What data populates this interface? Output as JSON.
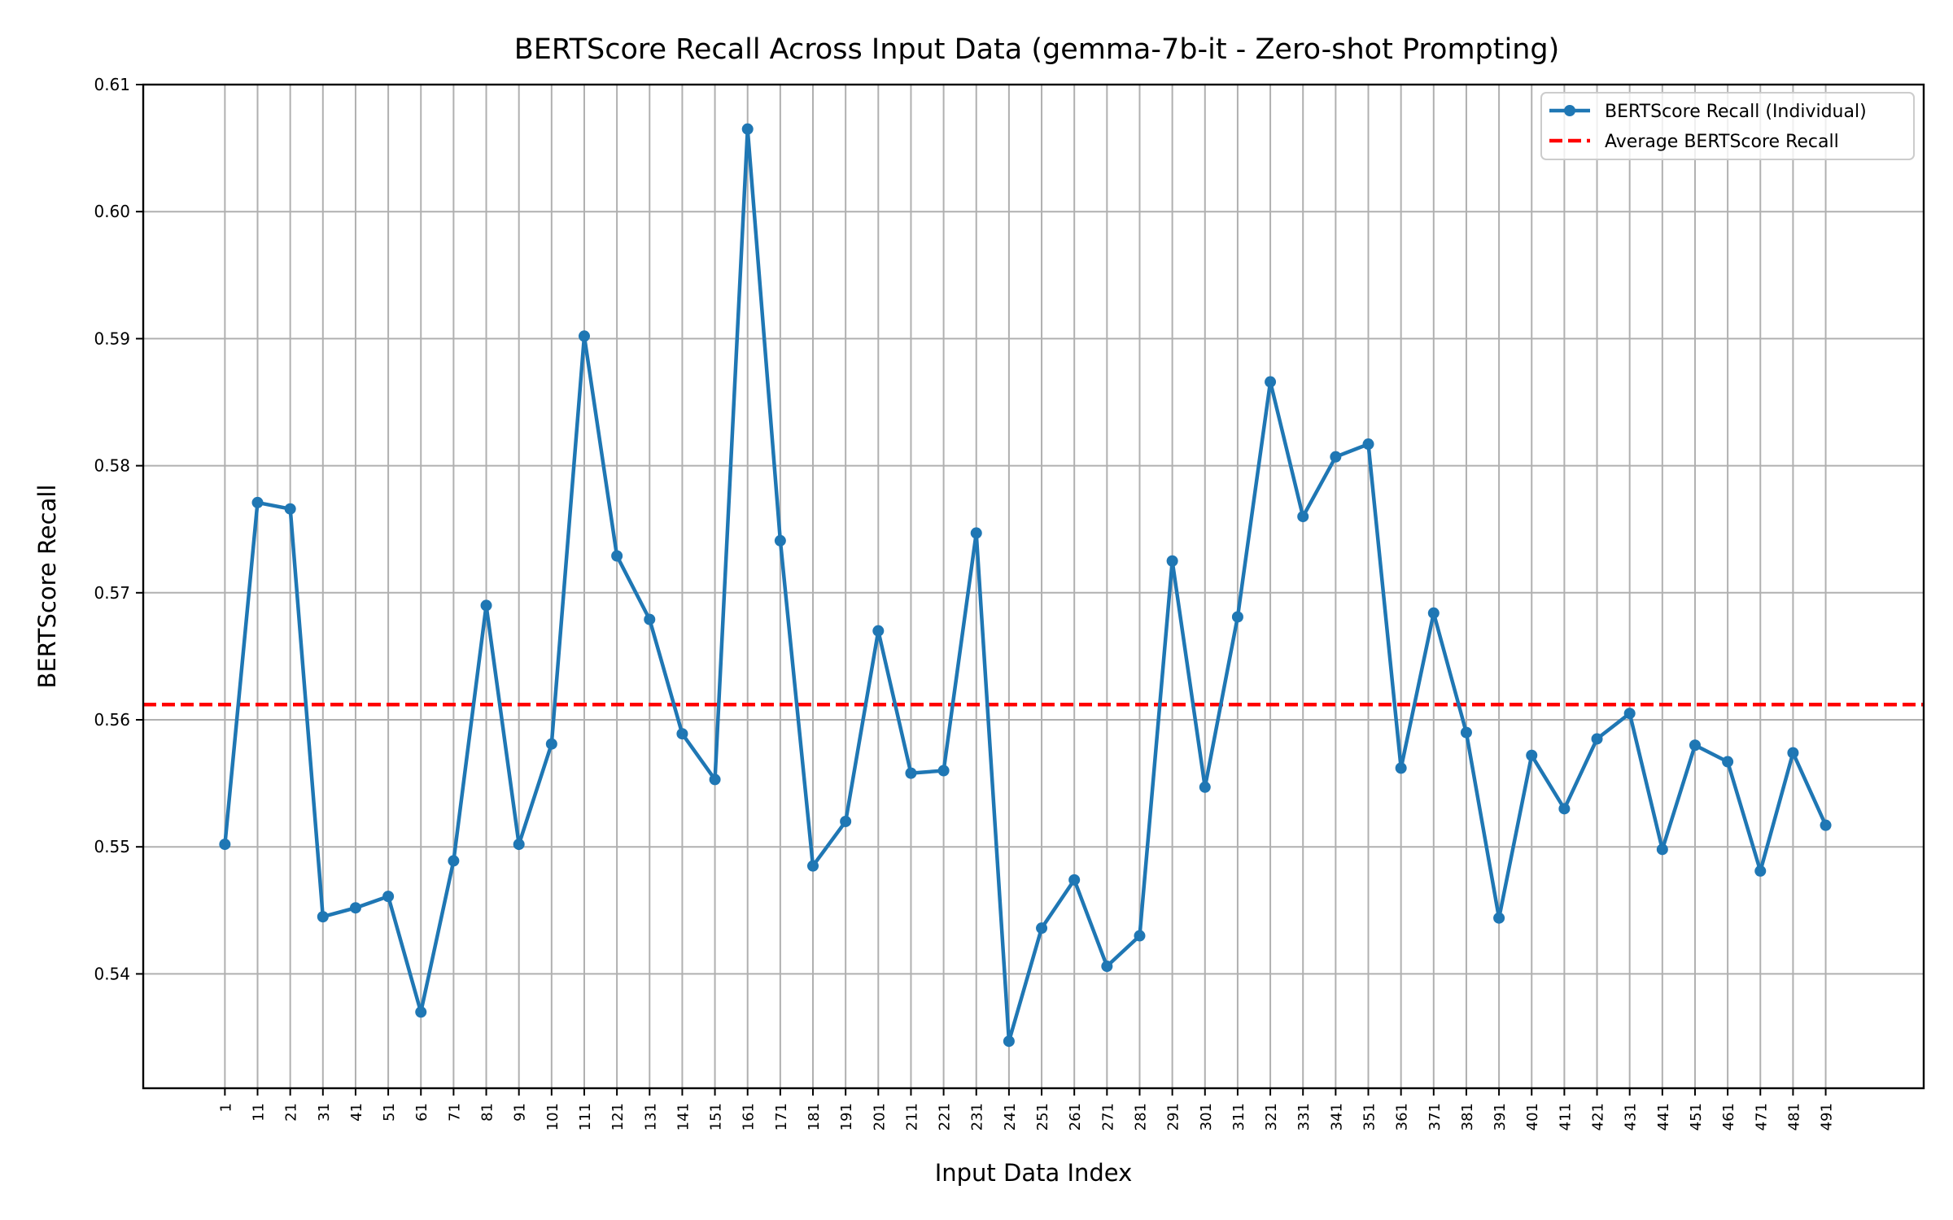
{
  "chart_data": {
    "type": "line",
    "title": "BERTScore Recall Across Input Data (gemma-7b-it - Zero-shot Prompting)",
    "xlabel": "Input Data Index",
    "ylabel": "BERTScore Recall",
    "x": [
      1,
      11,
      21,
      31,
      41,
      51,
      61,
      71,
      81,
      91,
      101,
      111,
      121,
      131,
      141,
      151,
      161,
      171,
      181,
      191,
      201,
      211,
      221,
      231,
      241,
      251,
      261,
      271,
      281,
      291,
      301,
      311,
      321,
      331,
      341,
      351,
      361,
      371,
      381,
      391,
      401,
      411,
      421,
      431,
      441,
      451,
      461,
      471,
      481,
      491
    ],
    "x_tick_labels": [
      "1",
      "11",
      "21",
      "31",
      "41",
      "51",
      "61",
      "71",
      "81",
      "91",
      "101",
      "111",
      "121",
      "131",
      "141",
      "151",
      "161",
      "171",
      "181",
      "191",
      "201",
      "211",
      "221",
      "231",
      "241",
      "251",
      "261",
      "271",
      "281",
      "291",
      "301",
      "311",
      "321",
      "331",
      "341",
      "351",
      "361",
      "371",
      "381",
      "391",
      "401",
      "411",
      "421",
      "431",
      "441",
      "451",
      "461",
      "471",
      "481",
      "491"
    ],
    "series": [
      {
        "name": "BERTScore Recall (Individual)",
        "color": "#1f77b4",
        "values": [
          0.5502,
          0.5771,
          0.5766,
          0.5445,
          0.5452,
          0.5461,
          0.537,
          0.5489,
          0.569,
          0.5502,
          0.5581,
          0.5902,
          0.5729,
          0.5679,
          0.5589,
          0.5553,
          0.6065,
          0.5741,
          0.5485,
          0.552,
          0.567,
          0.5558,
          0.556,
          0.5747,
          0.5347,
          0.5436,
          0.5474,
          0.5406,
          0.543,
          0.5725,
          0.5547,
          0.5681,
          0.5866,
          0.576,
          0.5807,
          0.5817,
          0.5562,
          0.5684,
          0.559,
          0.5444,
          0.5572,
          0.553,
          0.5585,
          0.5605,
          0.5498,
          0.558,
          0.5567,
          0.5481,
          0.5574,
          0.5517
        ]
      }
    ],
    "average": {
      "name": "Average BERTScore Recall",
      "value": 0.5612,
      "color": "#ff0000"
    },
    "y_ticks": [
      0.54,
      0.55,
      0.56,
      0.57,
      0.58,
      0.59,
      0.6,
      0.61
    ],
    "y_tick_labels": [
      "0.54",
      "0.55",
      "0.56",
      "0.57",
      "0.58",
      "0.59",
      "0.60",
      "0.61"
    ],
    "ylim": [
      0.531,
      0.61
    ],
    "xlim": [
      -24,
      521
    ],
    "grid": true,
    "legend_position": "top-right"
  }
}
